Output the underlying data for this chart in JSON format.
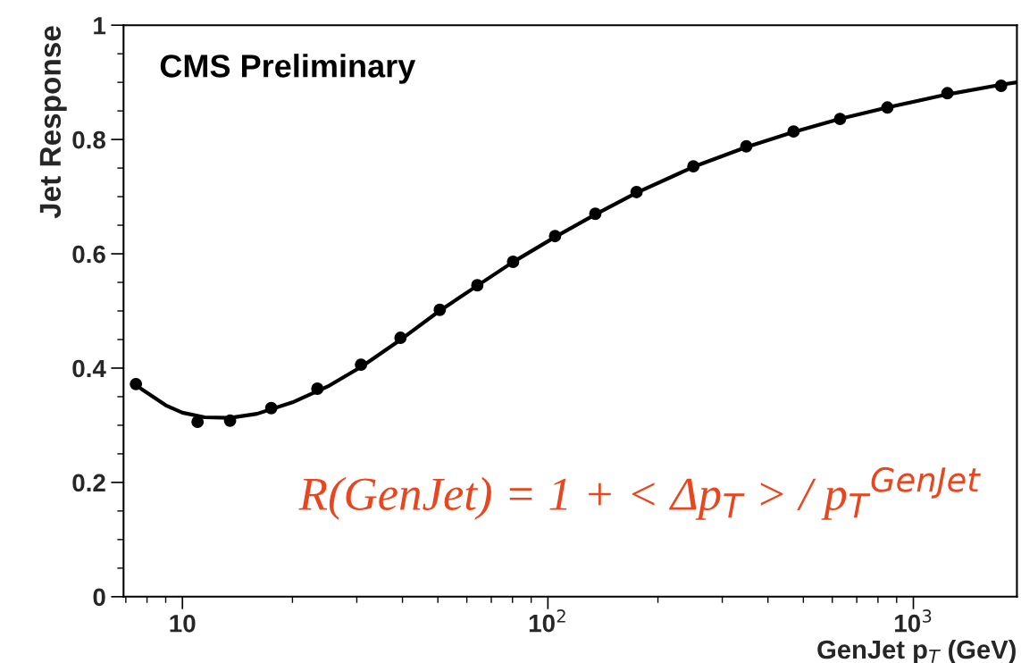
{
  "chart_data": {
    "type": "scatter",
    "xlabel": "GenJet p$_{T}$ (GeV)",
    "ylabel": "Jet Response",
    "annotations": [
      "CMS Preliminary",
      "R(GenJet) = 1 + < Δp$_{T}$ > / p$_{T}$$^{GenJet}$"
    ],
    "series": [
      {
        "color": "#000000",
        "marker": "circle",
        "x": [
          7.46,
          11.0,
          13.5,
          17.5,
          23.4,
          30.8,
          39.5,
          50.6,
          64.1,
          80.3,
          104.6,
          134.8,
          174.8,
          250,
          349,
          470,
          630,
          849,
          1239,
          1738
        ],
        "values": [
          0.372,
          0.306,
          0.308,
          0.33,
          0.364,
          0.406,
          0.453,
          0.502,
          0.545,
          0.586,
          0.631,
          0.67,
          0.708,
          0.753,
          0.788,
          0.814,
          0.836,
          0.856,
          0.881,
          0.894
        ]
      },
      {
        "type": "line",
        "color": "#000000",
        "marker": "none",
        "x": [
          7.7,
          9,
          10,
          11.5,
          13.5,
          16,
          20,
          25,
          31,
          40,
          50,
          64,
          80,
          105,
          135,
          175,
          250,
          350,
          470,
          630,
          850,
          1240,
          1740,
          1920
        ],
        "values": [
          0.364,
          0.335,
          0.322,
          0.314,
          0.313,
          0.32,
          0.34,
          0.368,
          0.403,
          0.452,
          0.498,
          0.544,
          0.585,
          0.63,
          0.669,
          0.707,
          0.752,
          0.787,
          0.813,
          0.836,
          0.856,
          0.879,
          0.896,
          0.9
        ]
      }
    ],
    "log": "x",
    "xlim": [
      6.9,
      1920
    ],
    "ylim": [
      0,
      1
    ],
    "xticks": [
      {
        "value": 10,
        "label": "10"
      },
      {
        "value": 100,
        "label": "10$^{2}$"
      },
      {
        "value": 1000,
        "label": "10$^{3}$"
      }
    ],
    "yticks": [
      0,
      0.2,
      0.4,
      0.6,
      0.8,
      1
    ],
    "grid": false,
    "legend": false,
    "line_style": "solid"
  }
}
